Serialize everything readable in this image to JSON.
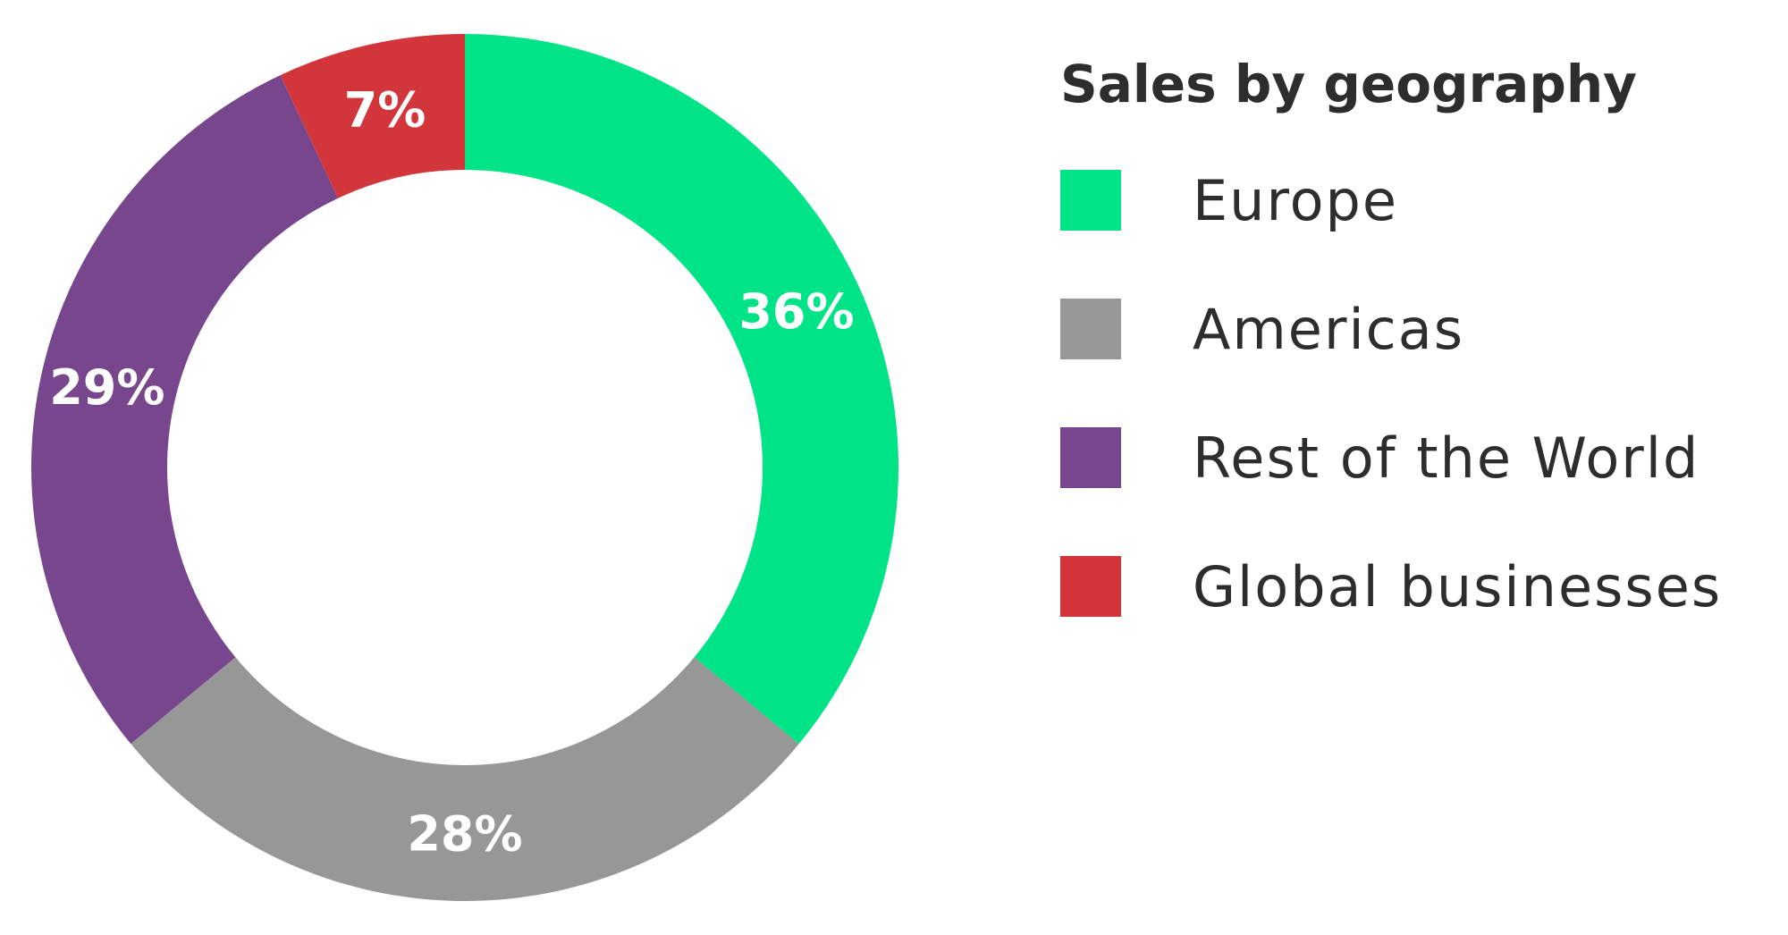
{
  "chart_data": {
    "type": "pie",
    "variant": "donut",
    "title": "Sales by geography",
    "slices": [
      {
        "name": "Europe",
        "value": 36,
        "label": "36%",
        "color": "#00e386"
      },
      {
        "name": "Americas",
        "value": 28,
        "label": "28%",
        "color": "#979797"
      },
      {
        "name": "Rest of the World",
        "value": 29,
        "label": "29%",
        "color": "#77468c"
      },
      {
        "name": "Global businesses",
        "value": 7,
        "label": "7%",
        "color": "#d2363a"
      }
    ],
    "legend_position": "right"
  }
}
